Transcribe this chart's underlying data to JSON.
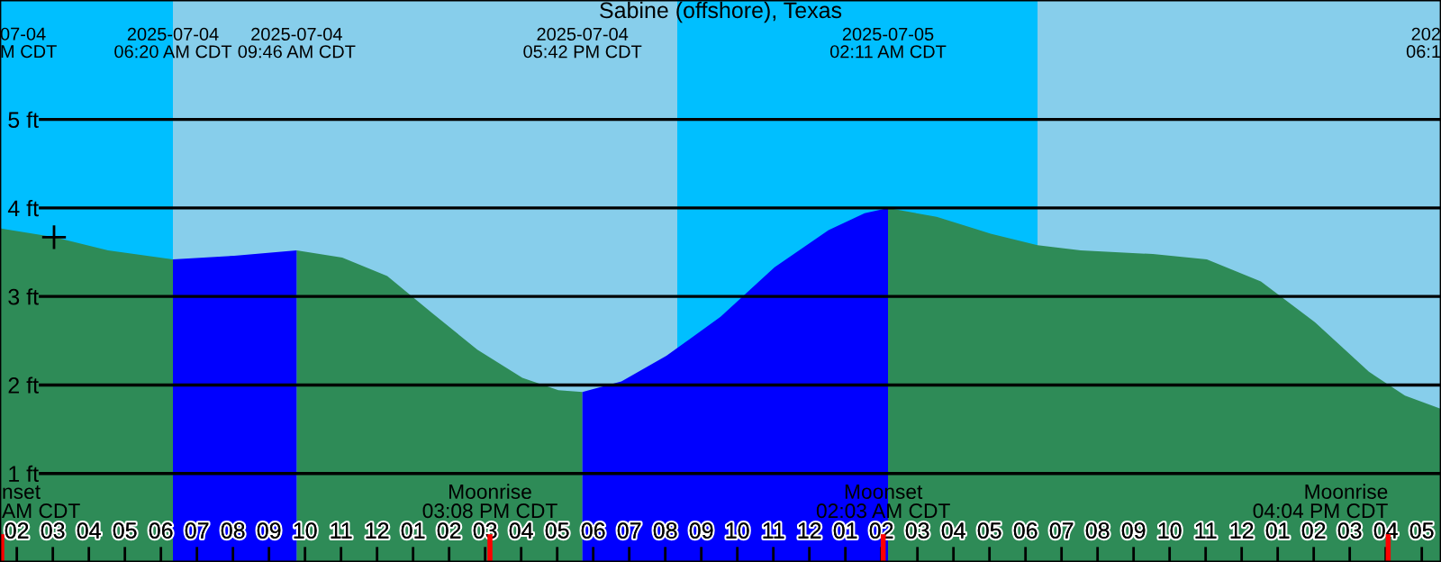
{
  "chart_data": {
    "type": "area",
    "title": "Sabine (offshore), Texas",
    "xlim": [
      "2025-07-04T01:32",
      "2025-07-05T17:32"
    ],
    "ylim": [
      0,
      6.35
    ],
    "xticks": [
      {
        "value": "2025-07-04T02:00",
        "label": "02"
      },
      {
        "value": "2025-07-04T03:00",
        "label": "03"
      },
      {
        "value": "2025-07-04T04:00",
        "label": "04"
      },
      {
        "value": "2025-07-04T05:00",
        "label": "05"
      },
      {
        "value": "2025-07-04T06:00",
        "label": "06"
      },
      {
        "value": "2025-07-04T07:00",
        "label": "07"
      },
      {
        "value": "2025-07-04T08:00",
        "label": "08"
      },
      {
        "value": "2025-07-04T09:00",
        "label": "09"
      },
      {
        "value": "2025-07-04T10:00",
        "label": "10"
      },
      {
        "value": "2025-07-04T11:00",
        "label": "11"
      },
      {
        "value": "2025-07-04T12:00",
        "label": "12"
      },
      {
        "value": "2025-07-04T13:00",
        "label": "01"
      },
      {
        "value": "2025-07-04T14:00",
        "label": "02"
      },
      {
        "value": "2025-07-04T15:00",
        "label": "03"
      },
      {
        "value": "2025-07-04T16:00",
        "label": "04"
      },
      {
        "value": "2025-07-04T17:00",
        "label": "05"
      },
      {
        "value": "2025-07-04T18:00",
        "label": "06"
      },
      {
        "value": "2025-07-04T19:00",
        "label": "07"
      },
      {
        "value": "2025-07-04T20:00",
        "label": "08"
      },
      {
        "value": "2025-07-04T21:00",
        "label": "09"
      },
      {
        "value": "2025-07-04T22:00",
        "label": "10"
      },
      {
        "value": "2025-07-04T23:00",
        "label": "11"
      },
      {
        "value": "2025-07-05T00:00",
        "label": "12"
      },
      {
        "value": "2025-07-05T01:00",
        "label": "01"
      },
      {
        "value": "2025-07-05T02:00",
        "label": "02"
      },
      {
        "value": "2025-07-05T03:00",
        "label": "03"
      },
      {
        "value": "2025-07-05T04:00",
        "label": "04"
      },
      {
        "value": "2025-07-05T05:00",
        "label": "05"
      },
      {
        "value": "2025-07-05T06:00",
        "label": "06"
      },
      {
        "value": "2025-07-05T07:00",
        "label": "07"
      },
      {
        "value": "2025-07-05T08:00",
        "label": "08"
      },
      {
        "value": "2025-07-05T09:00",
        "label": "09"
      },
      {
        "value": "2025-07-05T10:00",
        "label": "10"
      },
      {
        "value": "2025-07-05T11:00",
        "label": "11"
      },
      {
        "value": "2025-07-05T12:00",
        "label": "12"
      },
      {
        "value": "2025-07-05T13:00",
        "label": "01"
      },
      {
        "value": "2025-07-05T14:00",
        "label": "02"
      },
      {
        "value": "2025-07-05T15:00",
        "label": "03"
      },
      {
        "value": "2025-07-05T16:00",
        "label": "04"
      },
      {
        "value": "2025-07-05T17:00",
        "label": "05"
      }
    ],
    "yticks": [
      {
        "value": 1,
        "label": "1 ft"
      },
      {
        "value": 2,
        "label": "2 ft"
      },
      {
        "value": 3,
        "label": "3 ft"
      },
      {
        "value": 4,
        "label": "4 ft"
      },
      {
        "value": 5,
        "label": "5 ft"
      }
    ],
    "grid": "y",
    "bands": [
      {
        "axis": "x",
        "from": "2025-07-04T01:32",
        "to": "2025-07-04T06:20",
        "color": "#00bfff"
      },
      {
        "axis": "x",
        "from": "2025-07-04T06:20",
        "to": "2025-07-04T20:20",
        "color": "#87ceeb"
      },
      {
        "axis": "x",
        "from": "2025-07-04T20:20",
        "to": "2025-07-05T06:20",
        "color": "#00bfff"
      },
      {
        "axis": "x",
        "from": "2025-07-05T06:20",
        "to": "2025-07-05T17:32",
        "color": "#87ceeb"
      }
    ],
    "ref_lines": [
      {
        "axis": "x",
        "value": "2025-07-04T01:35",
        "label": "nset\nAM CDT",
        "color": "#ff0000"
      },
      {
        "axis": "x",
        "value": "2025-07-04T15:08",
        "label": "Moonrise\n03:08 PM CDT",
        "color": "#ff0000"
      },
      {
        "axis": "x",
        "value": "2025-07-05T02:03",
        "label": "Moonset\n02:03 AM CDT",
        "color": "#ff0000"
      },
      {
        "axis": "x",
        "value": "2025-07-05T16:04",
        "label": "Moonrise\n04:04 PM CDT",
        "color": "#ff0000"
      }
    ],
    "series": [
      {
        "color": "#2e8b57",
        "x": [
          "2025-07-04T01:32",
          "2025-07-04T03:02",
          "2025-07-04T04:32",
          "2025-07-04T06:20",
          "2025-07-04T08:02",
          "2025-07-04T09:46",
          "2025-07-04T11:02",
          "2025-07-04T12:17",
          "2025-07-04T13:32",
          "2025-07-04T14:47",
          "2025-07-04T16:02",
          "2025-07-04T17:02",
          "2025-07-04T17:42",
          "2025-07-04T18:47",
          "2025-07-04T20:02",
          "2025-07-04T21:32",
          "2025-07-04T23:02",
          "2025-07-05T00:32",
          "2025-07-05T01:32",
          "2025-07-05T02:11",
          "2025-07-05T03:32",
          "2025-07-05T05:02",
          "2025-07-05T06:20",
          "2025-07-05T07:32",
          "2025-07-05T09:32",
          "2025-07-05T11:02",
          "2025-07-05T12:32",
          "2025-07-05T14:02",
          "2025-07-05T15:32",
          "2025-07-05T16:32",
          "2025-07-05T17:32"
        ],
        "values": [
          3.77,
          3.67,
          3.52,
          3.42,
          null,
          3.52,
          3.44,
          3.23,
          2.81,
          2.4,
          2.08,
          1.94,
          1.92,
          null,
          null,
          null,
          null,
          null,
          null,
          4.0,
          3.9,
          3.71,
          3.58,
          3.52,
          3.48,
          3.42,
          3.17,
          2.71,
          2.15,
          1.88,
          1.73
        ]
      },
      {
        "color": "#0000ff",
        "x": [
          "2025-07-04T06:20",
          "2025-07-04T08:02",
          "2025-07-04T09:46",
          "2025-07-04T13:32",
          "2025-07-04T17:42",
          "2025-07-04T18:47",
          "2025-07-04T20:02",
          "2025-07-04T21:32",
          "2025-07-04T23:02",
          "2025-07-05T00:32",
          "2025-07-05T01:32",
          "2025-07-05T02:11"
        ],
        "values": [
          3.42,
          3.46,
          3.52,
          null,
          1.92,
          2.04,
          2.33,
          2.77,
          3.33,
          3.75,
          3.94,
          4.0
        ]
      },
      {
        "type": "scatter",
        "color": "#000000",
        "marker": "cross",
        "x": [
          "2025-07-04T03:02"
        ],
        "values": [
          3.67
        ]
      }
    ],
    "annotations": [
      {
        "text": "07-04\nM CDT",
        "x": "2025-07-04T01:32",
        "y": 5.85
      },
      "2025-07-04\n06:20 AM CDT",
      "2025-07-04\n09:46 AM CDT",
      "2025-07-04\n05:42 PM CDT",
      "2025-07-05\n02:11 AM CDT",
      {
        "text": "202\n06:1",
        "x": "2025-07-05T17:32",
        "y": 5.85
      }
    ]
  }
}
